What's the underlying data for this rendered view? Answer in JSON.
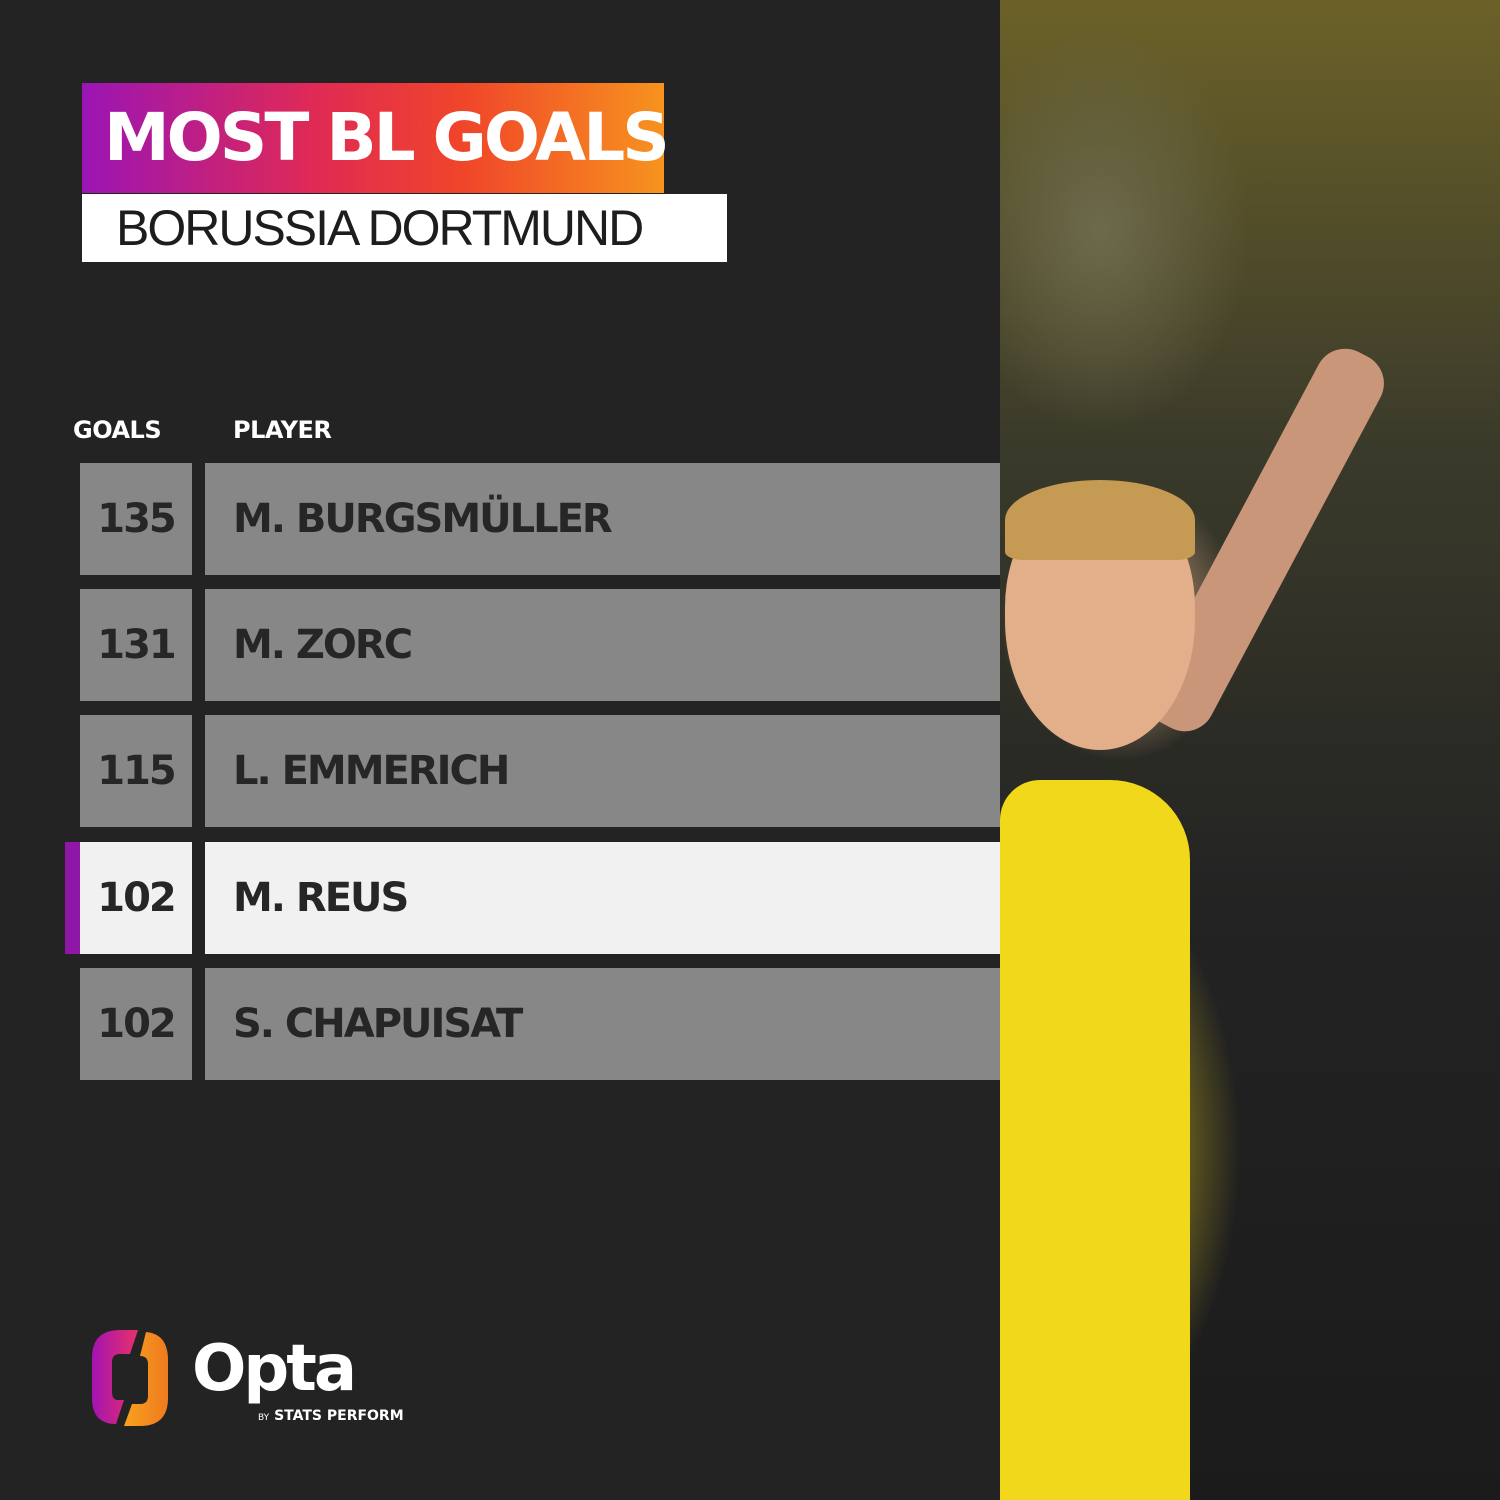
{
  "title": "MOST BL GOALS",
  "subtitle": "BORUSSIA DORTMUND",
  "columns": {
    "goals": "GOALS",
    "player": "PLAYER"
  },
  "rows": [
    {
      "goals": "135",
      "player": "M. BURGSMÜLLER",
      "highlighted": false
    },
    {
      "goals": "131",
      "player": "M. ZORC",
      "highlighted": false
    },
    {
      "goals": "115",
      "player": "L. EMMERICH",
      "highlighted": false
    },
    {
      "goals": "102",
      "player": "M. REUS",
      "highlighted": true
    },
    {
      "goals": "102",
      "player": "S. CHAPUISAT",
      "highlighted": false
    }
  ],
  "brand": {
    "name": "Opta",
    "by": "BY",
    "tagline": "STATS PERFORM"
  },
  "colors": {
    "accent": "#8f17a8",
    "row": "#878787",
    "highlight_row": "#f1f1f1",
    "background": "#232323"
  }
}
